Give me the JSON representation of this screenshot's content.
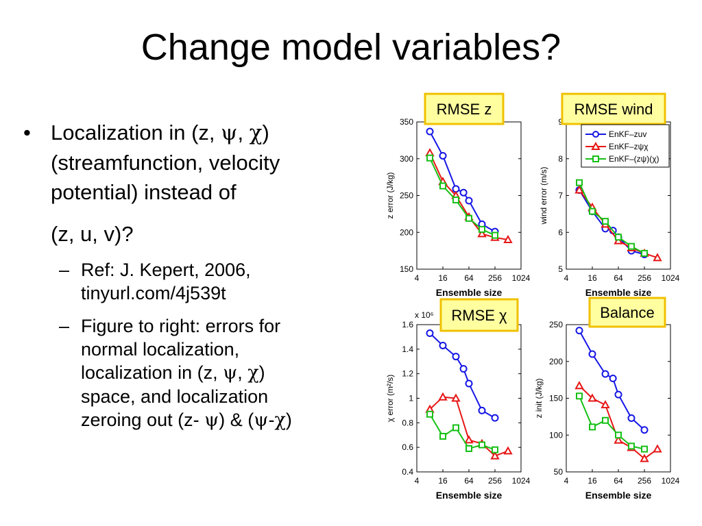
{
  "slide": {
    "title": "Change model variables?",
    "bullet": {
      "symbol": "•",
      "lines": [
        [
          {
            "t": "Localization in (z, "
          },
          {
            "t": "ψ",
            "g": 1
          },
          {
            "t": ", "
          },
          {
            "t": "χ",
            "g": 1
          },
          {
            "t": ")"
          }
        ],
        [
          {
            "t": "(streamfunction, velocity"
          }
        ],
        [
          {
            "t": "potential) instead of"
          }
        ],
        [],
        [
          {
            "t": "(z, u, v)?"
          }
        ]
      ]
    },
    "subbullets": [
      {
        "symbol": "–",
        "lines": [
          [
            {
              "t": "Ref: J. Kepert, 2006,"
            }
          ],
          [
            {
              "t": "tinyurl.com/4j539t"
            }
          ]
        ]
      },
      {
        "symbol": "–",
        "lines": [
          [
            {
              "t": "Figure to right: errors for"
            }
          ],
          [
            {
              "t": "normal localization,"
            }
          ],
          [
            {
              "t": "localization in (z, "
            },
            {
              "t": "ψ",
              "g": 1
            },
            {
              "t": ", "
            },
            {
              "t": "χ",
              "g": 1
            },
            {
              "t": ")"
            }
          ],
          [
            {
              "t": "space, and localization"
            }
          ],
          [
            {
              "t": "zeroing out (z- "
            },
            {
              "t": "ψ",
              "g": 1
            },
            {
              "t": ") & ("
            },
            {
              "t": "ψ",
              "g": 1
            },
            {
              "t": "-"
            },
            {
              "t": "χ",
              "g": 1
            },
            {
              "t": ")"
            }
          ]
        ]
      }
    ]
  },
  "colors": {
    "enkf_zuv": "#1515e6",
    "enkf_zpsichi": "#e61515",
    "enkf_zpsi_chi": "#15c015",
    "label_box_fill": "#ffffa0",
    "label_box_border": "#f0c000"
  },
  "chart_data": [
    {
      "type": "line",
      "title": "RMSE z",
      "xlabel": "Ensemble size",
      "ylabel": "z error (J/kg)",
      "xscale": "log2",
      "xticks": [
        "4",
        "16",
        "64",
        "256",
        "1024"
      ],
      "xlim": [
        4,
        1024
      ],
      "yticks": [
        "150",
        "200",
        "250",
        "300",
        "350"
      ],
      "ylim": [
        150,
        350
      ],
      "legend": null,
      "series": [
        {
          "name": "EnKF–zuv",
          "x": [
            8,
            16,
            32,
            48,
            64,
            128,
            256
          ],
          "values": [
            337,
            304,
            259,
            254,
            243,
            211,
            201
          ]
        },
        {
          "name": "EnKF–zψχ",
          "x": [
            8,
            16,
            32,
            64,
            128,
            256,
            512
          ],
          "values": [
            308,
            269,
            250,
            221,
            198,
            193,
            190
          ]
        },
        {
          "name": "EnKF–(zψ)(χ)",
          "x": [
            8,
            16,
            32,
            64,
            128,
            256
          ],
          "values": [
            301,
            263,
            244,
            219,
            204,
            196
          ]
        }
      ]
    },
    {
      "type": "line",
      "title": "RMSE wind",
      "xlabel": "Ensemble size",
      "ylabel": "wind error (m/s)",
      "xscale": "log2",
      "xticks": [
        "4",
        "16",
        "64",
        "256",
        "1024"
      ],
      "xlim": [
        4,
        1024
      ],
      "yticks": [
        "5",
        "6",
        "7",
        "8",
        "9"
      ],
      "ylim": [
        5,
        9
      ],
      "legend": "top-right",
      "series": [
        {
          "name": "EnKF–zuv",
          "x": [
            8,
            16,
            32,
            48,
            64,
            128,
            256
          ],
          "values": [
            7.15,
            6.57,
            6.1,
            6.05,
            5.87,
            5.5,
            5.4
          ]
        },
        {
          "name": "EnKF–zψχ",
          "x": [
            8,
            16,
            32,
            64,
            128,
            256,
            512
          ],
          "values": [
            7.15,
            6.68,
            6.22,
            5.77,
            5.58,
            5.43,
            5.31
          ]
        },
        {
          "name": "EnKF–(zψ)(χ)",
          "x": [
            8,
            16,
            32,
            64,
            128,
            256
          ],
          "values": [
            7.35,
            6.57,
            6.3,
            5.87,
            5.62,
            5.43
          ]
        }
      ]
    },
    {
      "type": "line",
      "title": "RMSE χ",
      "xlabel": "Ensemble size",
      "ylabel": "χ error (m²/s)",
      "y_multiplier": "x 10⁶",
      "xscale": "log2",
      "xticks": [
        "4",
        "16",
        "64",
        "256",
        "1024"
      ],
      "xlim": [
        4,
        1024
      ],
      "yticks": [
        "0.4",
        "0.6",
        "0.8",
        "1",
        "1.2",
        "1.4",
        "1.6"
      ],
      "ylim": [
        0.4,
        1.6
      ],
      "legend": null,
      "series": [
        {
          "name": "EnKF–zuv",
          "x": [
            8,
            16,
            32,
            48,
            64,
            128,
            256
          ],
          "values": [
            1.53,
            1.43,
            1.34,
            1.24,
            1.12,
            0.9,
            0.84
          ]
        },
        {
          "name": "EnKF–zψχ",
          "x": [
            8,
            16,
            32,
            64,
            128,
            256,
            512
          ],
          "values": [
            0.91,
            1.01,
            1.0,
            0.66,
            0.63,
            0.53,
            0.57
          ]
        },
        {
          "name": "EnKF–(zψ)(χ)",
          "x": [
            8,
            16,
            32,
            64,
            128,
            256
          ],
          "values": [
            0.87,
            0.69,
            0.76,
            0.59,
            0.62,
            0.58
          ]
        }
      ]
    },
    {
      "type": "line",
      "title": "Balance",
      "xlabel": "Ensemble size",
      "ylabel": "z init (J/kg)",
      "xscale": "log2",
      "xticks": [
        "4",
        "16",
        "64",
        "256",
        "1024"
      ],
      "xlim": [
        4,
        1024
      ],
      "yticks": [
        "50",
        "100",
        "150",
        "200",
        "250"
      ],
      "ylim": [
        50,
        250
      ],
      "legend": null,
      "series": [
        {
          "name": "EnKF–zuv",
          "x": [
            8,
            16,
            32,
            48,
            64,
            128,
            256
          ],
          "values": [
            242,
            210,
            183,
            177,
            155,
            123,
            107
          ]
        },
        {
          "name": "EnKF–zψχ",
          "x": [
            8,
            16,
            32,
            64,
            128,
            256,
            512
          ],
          "values": [
            167,
            150,
            141,
            93,
            83,
            68,
            81
          ]
        },
        {
          "name": "EnKF–(zψ)(χ)",
          "x": [
            8,
            16,
            32,
            64,
            128,
            256
          ],
          "values": [
            153,
            111,
            120,
            100,
            85,
            81
          ]
        }
      ]
    }
  ]
}
